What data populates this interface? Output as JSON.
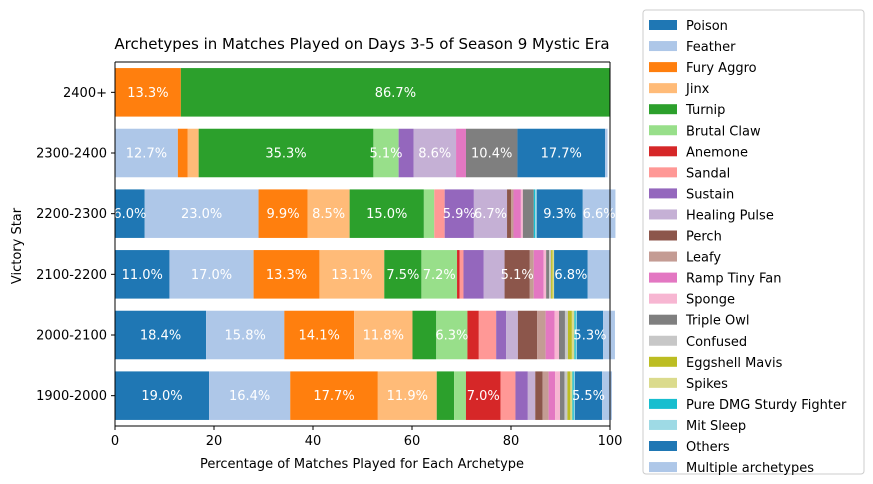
{
  "chart_data": {
    "type": "bar",
    "orientation": "horizontal",
    "stacked": true,
    "title": "Archetypes in Matches Played on Days 3-5 of Season 9 Mystic Era",
    "xlabel": "Percentage of Matches Played for Each Archetype",
    "ylabel": "Victory Star",
    "xlim": [
      0,
      100
    ],
    "xticks": [
      "0",
      "20",
      "40",
      "60",
      "80",
      "100"
    ],
    "grid": false,
    "legend_position": "right-outside",
    "categories": [
      "2400+",
      "2300-2400",
      "2200-2300",
      "2100-2200",
      "2000-2100",
      "1900-2000"
    ],
    "series": [
      {
        "name": "Poison",
        "color": "#1f77b4",
        "values": [
          0,
          0,
          6.0,
          11.0,
          18.4,
          19.0
        ]
      },
      {
        "name": "Feather",
        "color": "#aec7e8",
        "values": [
          0,
          12.7,
          23.0,
          17.0,
          15.8,
          16.4
        ]
      },
      {
        "name": "Fury Aggro",
        "color": "#ff7f0e",
        "values": [
          13.3,
          2.0,
          9.9,
          13.3,
          14.1,
          17.7
        ]
      },
      {
        "name": "Jinx",
        "color": "#ffbb78",
        "values": [
          0,
          2.2,
          8.5,
          13.1,
          11.8,
          11.9
        ]
      },
      {
        "name": "Turnip",
        "color": "#2ca02c",
        "values": [
          86.7,
          35.3,
          15.0,
          7.5,
          4.8,
          3.5
        ]
      },
      {
        "name": "Brutal Claw",
        "color": "#98df8a",
        "values": [
          0,
          5.1,
          2.1,
          7.2,
          6.3,
          2.4
        ]
      },
      {
        "name": "Anemone",
        "color": "#d62728",
        "values": [
          0,
          0,
          0,
          0.5,
          2.3,
          7.0
        ]
      },
      {
        "name": "Sandal",
        "color": "#ff9896",
        "values": [
          0,
          0,
          2.1,
          0.8,
          3.5,
          3.0
        ]
      },
      {
        "name": "Sustain",
        "color": "#9467bd",
        "values": [
          0,
          3.0,
          5.9,
          4.1,
          2.0,
          2.5
        ]
      },
      {
        "name": "Healing Pulse",
        "color": "#c5b0d5",
        "values": [
          0,
          8.6,
          6.7,
          4.2,
          2.4,
          1.5
        ]
      },
      {
        "name": "Perch",
        "color": "#8c564b",
        "values": [
          0,
          0,
          0.8,
          5.1,
          3.9,
          1.5
        ]
      },
      {
        "name": "Leafy",
        "color": "#c49c94",
        "values": [
          0,
          0,
          0.5,
          0.8,
          1.7,
          1.2
        ]
      },
      {
        "name": "Ramp Tiny Fan",
        "color": "#e377c2",
        "values": [
          0,
          2.0,
          1.5,
          2.0,
          1.8,
          1.3
        ]
      },
      {
        "name": "Sponge",
        "color": "#f7b6d2",
        "values": [
          0,
          0,
          0.4,
          0.5,
          0.9,
          1.0
        ]
      },
      {
        "name": "Triple Owl",
        "color": "#7f7f7f",
        "values": [
          0,
          10.4,
          2.2,
          0.6,
          1.2,
          0.9
        ]
      },
      {
        "name": "Confused",
        "color": "#c7c7c7",
        "values": [
          0,
          0,
          0,
          0.4,
          0.6,
          0.6
        ]
      },
      {
        "name": "Eggshell Mavis",
        "color": "#bcbd22",
        "values": [
          0,
          0,
          0,
          0.3,
          0.8,
          0.6
        ]
      },
      {
        "name": "Spikes",
        "color": "#dbdb8d",
        "values": [
          0,
          0,
          0,
          0.3,
          0.5,
          0.4
        ]
      },
      {
        "name": "Pure DMG Sturdy Fighter",
        "color": "#17becf",
        "values": [
          0,
          0,
          0.3,
          0,
          0.3,
          0.3
        ]
      },
      {
        "name": "Mit Sleep",
        "color": "#9edae5",
        "values": [
          0,
          0,
          0.3,
          0,
          0.2,
          0.2
        ]
      },
      {
        "name": "Others",
        "color": "#1f77b4",
        "values": [
          0,
          17.7,
          9.3,
          6.8,
          5.3,
          5.5
        ]
      },
      {
        "name": "Multiple archetypes",
        "color": "#aec7e8",
        "values": [
          0,
          0.5,
          6.6,
          4.5,
          2.4,
          2.0
        ]
      }
    ],
    "labels": [
      [
        null,
        null,
        null,
        null,
        "13.3%",
        "86.7%"
      ],
      [
        null,
        "12.7%",
        "35.3%",
        "5.1%",
        "8.6%",
        "10.4%",
        "17.7%"
      ],
      [
        "6.0%",
        "23.0%",
        "9.9%",
        "8.5%",
        "15.0%",
        "5.9%",
        "6.7%",
        "9.3%",
        "6.6%"
      ],
      [
        "11.0%",
        "17.0%",
        "13.3%",
        "13.1%",
        "7.5%",
        "7.2%",
        "5.1%",
        "6.8%"
      ],
      [
        "18.4%",
        "15.8%",
        "14.1%",
        "11.8%",
        "6.3%",
        "5.3%"
      ],
      [
        "19.0%",
        "16.4%",
        "17.7%",
        "11.9%",
        "7.0%",
        "5.5%"
      ]
    ]
  }
}
